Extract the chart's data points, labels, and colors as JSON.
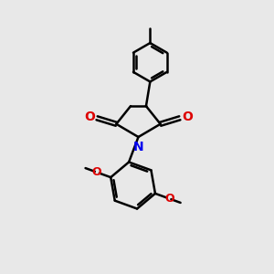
{
  "bg_color": "#e8e8e8",
  "bond_color": "#000000",
  "N_color": "#0000ee",
  "O_color": "#dd0000",
  "line_width": 1.8,
  "figsize": [
    3.0,
    3.0
  ],
  "dpi": 100,
  "xlim": [
    0,
    10
  ],
  "ylim": [
    0,
    10
  ]
}
